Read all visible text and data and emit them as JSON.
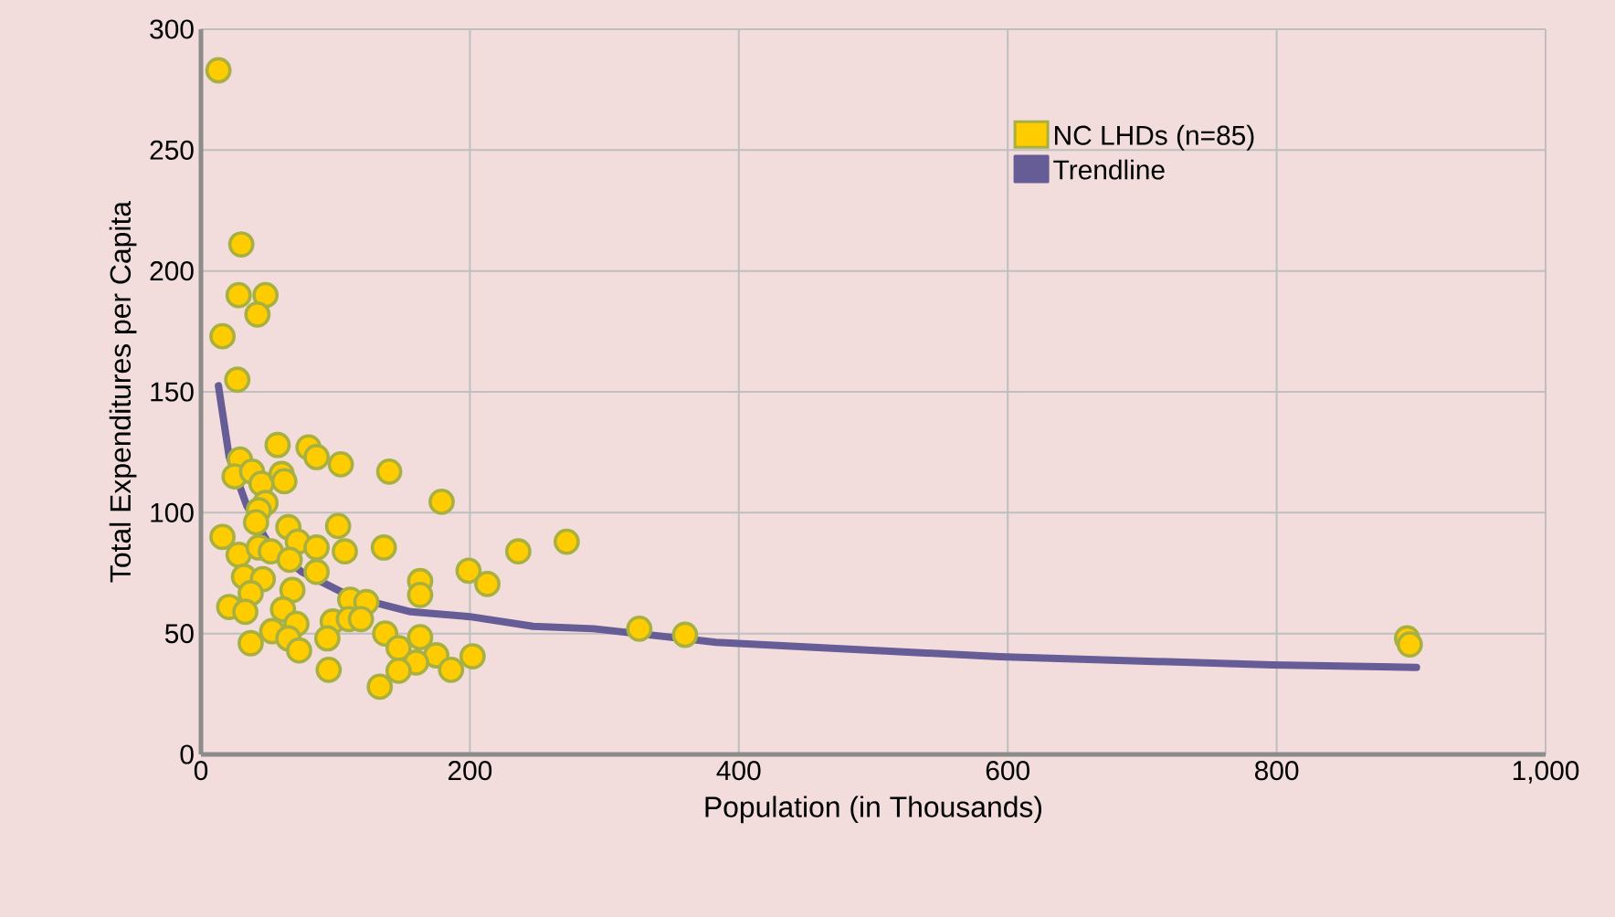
{
  "chart_data": {
    "type": "scatter",
    "xlabel": "Population (in Thousands)",
    "ylabel": "Total Expenditures per Capita",
    "xlim": [
      0,
      1000
    ],
    "ylim": [
      0,
      300
    ],
    "xticks": [
      0,
      200,
      400,
      600,
      800,
      {
        "value": 1000,
        "label": "1,000"
      }
    ],
    "yticks": [
      0,
      50,
      100,
      150,
      200,
      250,
      300
    ],
    "grid": true,
    "legend": "top right",
    "marker": "circle",
    "series": [
      {
        "name": "NC LHDs (n=85)",
        "color": "#ffcc00",
        "x": [
          13,
          30,
          28,
          48,
          42,
          16,
          27,
          57,
          80,
          86,
          104,
          140,
          179,
          29,
          25,
          38,
          45,
          60,
          62,
          48,
          43,
          41,
          65,
          102,
          16,
          72,
          86,
          107,
          136,
          236,
          28,
          43,
          52,
          66,
          86,
          32,
          46,
          68,
          37,
          163,
          163,
          199,
          213,
          111,
          123,
          21,
          33,
          61,
          71,
          98,
          110,
          119,
          53,
          65,
          94,
          137,
          37,
          73,
          147,
          163,
          175,
          202,
          160,
          147,
          186,
          95,
          133,
          272,
          326,
          360,
          897,
          899
        ],
        "values": [
          283,
          211,
          190,
          190,
          182,
          173,
          155,
          128,
          127,
          123,
          120,
          117,
          104.5,
          122,
          115,
          117,
          112,
          116,
          113,
          104,
          101,
          96,
          94,
          94.5,
          90,
          88,
          85.6,
          84,
          85.6,
          84,
          82.6,
          85.6,
          84,
          80.5,
          75.5,
          73.5,
          72.5,
          68,
          66.7,
          71.7,
          66,
          76,
          70.5,
          64,
          63,
          61,
          59,
          60,
          54,
          55,
          56,
          56,
          51,
          48,
          48,
          50,
          46,
          43,
          44,
          48.5,
          41,
          40.6,
          38,
          34.6,
          35,
          35,
          28,
          88,
          52,
          49.5,
          48,
          45.5
        ]
      },
      {
        "name": "Trendline",
        "type": "line",
        "color": "#665c96",
        "line_style": "solid",
        "marker": "none",
        "x": [
          13,
          21,
          34,
          52,
          75,
          111,
          156,
          200,
          247,
          292,
          383,
          594,
          797,
          904
        ],
        "values": [
          152.5,
          123,
          103,
          85.6,
          75.5,
          65.4,
          59,
          57,
          53,
          52,
          46.4,
          40.4,
          37,
          36
        ]
      }
    ]
  }
}
